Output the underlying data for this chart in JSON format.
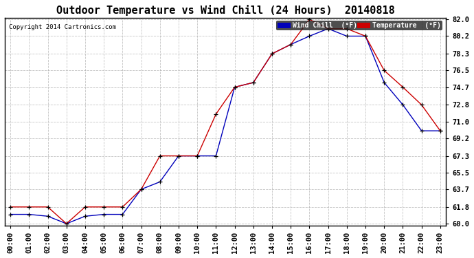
{
  "title": "Outdoor Temperature vs Wind Chill (24 Hours)  20140818",
  "copyright": "Copyright 2014 Cartronics.com",
  "legend_wind_chill": "Wind Chill  (°F)",
  "legend_temperature": "Temperature  (°F)",
  "hours": [
    "00:00",
    "01:00",
    "02:00",
    "03:00",
    "04:00",
    "05:00",
    "06:00",
    "07:00",
    "08:00",
    "09:00",
    "10:00",
    "11:00",
    "12:00",
    "13:00",
    "14:00",
    "15:00",
    "16:00",
    "17:00",
    "18:00",
    "19:00",
    "20:00",
    "21:00",
    "22:00",
    "23:00"
  ],
  "temperature": [
    61.8,
    61.8,
    61.8,
    60.0,
    61.8,
    61.8,
    61.8,
    63.7,
    67.3,
    67.3,
    67.3,
    71.8,
    74.7,
    75.2,
    78.3,
    79.3,
    82.0,
    81.0,
    81.0,
    80.2,
    76.5,
    74.7,
    72.8,
    70.0
  ],
  "wind_chill": [
    61.0,
    61.0,
    60.8,
    60.0,
    60.8,
    61.0,
    61.0,
    63.7,
    64.5,
    67.3,
    67.3,
    67.3,
    74.7,
    75.2,
    78.3,
    79.3,
    80.2,
    81.0,
    80.2,
    80.2,
    75.2,
    72.8,
    70.0,
    70.0
  ],
  "ylim": [
    59.8,
    82.2
  ],
  "yticks": [
    60.0,
    61.8,
    63.7,
    65.5,
    67.3,
    69.2,
    71.0,
    72.8,
    74.7,
    76.5,
    78.3,
    80.2,
    82.0
  ],
  "background_color": "#ffffff",
  "grid_color": "#aaaaaa",
  "temp_color": "#cc0000",
  "wind_color": "#0000bb",
  "title_fontsize": 11,
  "label_fontsize": 7.5
}
